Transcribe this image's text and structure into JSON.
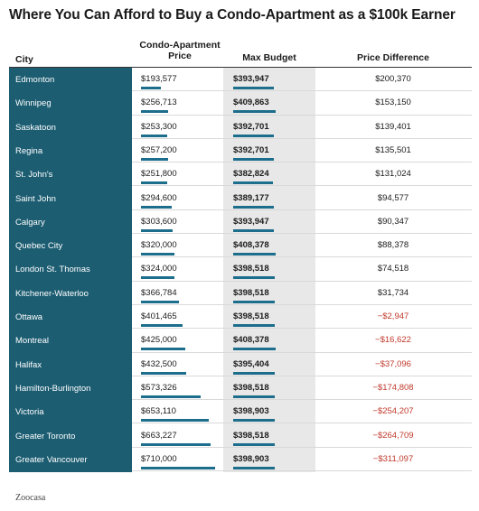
{
  "title": "Where You Can Afford to Buy a Condo-Apartment as a $100k Earner",
  "source": "Zoocasa",
  "chart_data": {
    "type": "table",
    "columns": [
      "City",
      "Condo-Apartment Price",
      "Max Budget",
      "Price Difference"
    ],
    "rows": [
      {
        "city": "Edmonton",
        "condo_label": "$193,577",
        "condo": 193577,
        "max_label": "$393,947",
        "max": 393947,
        "diff_label": "$200,370",
        "diff": 200370
      },
      {
        "city": "Winnipeg",
        "condo_label": "$256,713",
        "condo": 256713,
        "max_label": "$409,863",
        "max": 409863,
        "diff_label": "$153,150",
        "diff": 153150
      },
      {
        "city": "Saskatoon",
        "condo_label": "$253,300",
        "condo": 253300,
        "max_label": "$392,701",
        "max": 392701,
        "diff_label": "$139,401",
        "diff": 139401
      },
      {
        "city": "Regina",
        "condo_label": "$257,200",
        "condo": 257200,
        "max_label": "$392,701",
        "max": 392701,
        "diff_label": "$135,501",
        "diff": 135501
      },
      {
        "city": "St. John's",
        "condo_label": "$251,800",
        "condo": 251800,
        "max_label": "$382,824",
        "max": 382824,
        "diff_label": "$131,024",
        "diff": 131024
      },
      {
        "city": "Saint John",
        "condo_label": "$294,600",
        "condo": 294600,
        "max_label": "$389,177",
        "max": 389177,
        "diff_label": "$94,577",
        "diff": 94577
      },
      {
        "city": "Calgary",
        "condo_label": "$303,600",
        "condo": 303600,
        "max_label": "$393,947",
        "max": 393947,
        "diff_label": "$90,347",
        "diff": 90347
      },
      {
        "city": "Quebec City",
        "condo_label": "$320,000",
        "condo": 320000,
        "max_label": "$408,378",
        "max": 408378,
        "diff_label": "$88,378",
        "diff": 88378
      },
      {
        "city": "London St. Thomas",
        "condo_label": "$324,000",
        "condo": 324000,
        "max_label": "$398,518",
        "max": 398518,
        "diff_label": "$74,518",
        "diff": 74518
      },
      {
        "city": "Kitchener-Waterloo",
        "condo_label": "$366,784",
        "condo": 366784,
        "max_label": "$398,518",
        "max": 398518,
        "diff_label": "$31,734",
        "diff": 31734
      },
      {
        "city": "Ottawa",
        "condo_label": "$401,465",
        "condo": 401465,
        "max_label": "$398,518",
        "max": 398518,
        "diff_label": "−$2,947",
        "diff": -2947
      },
      {
        "city": "Montreal",
        "condo_label": "$425,000",
        "condo": 425000,
        "max_label": "$408,378",
        "max": 408378,
        "diff_label": "−$16,622",
        "diff": -16622
      },
      {
        "city": "Halifax",
        "condo_label": "$432,500",
        "condo": 432500,
        "max_label": "$395,404",
        "max": 395404,
        "diff_label": "−$37,096",
        "diff": -37096
      },
      {
        "city": "Hamilton-Burlington",
        "condo_label": "$573,326",
        "condo": 573326,
        "max_label": "$398,518",
        "max": 398518,
        "diff_label": "−$174,808",
        "diff": -174808
      },
      {
        "city": "Victoria",
        "condo_label": "$653,110",
        "condo": 653110,
        "max_label": "$398,903",
        "max": 398903,
        "diff_label": "−$254,207",
        "diff": -254207
      },
      {
        "city": "Greater Toronto",
        "condo_label": "$663,227",
        "condo": 663227,
        "max_label": "$398,518",
        "max": 398518,
        "diff_label": "−$264,709",
        "diff": -264709
      },
      {
        "city": "Greater Vancouver",
        "condo_label": "$710,000",
        "condo": 710000,
        "max_label": "$398,903",
        "max": 398903,
        "diff_label": "−$311,097",
        "diff": -311097
      }
    ],
    "bar_max": 710000,
    "colors": {
      "city_column": "#1c5d72",
      "bar": "#1c6e8c",
      "negative": "#c0392b",
      "max_budget_bg": "#e8e8e8"
    }
  }
}
